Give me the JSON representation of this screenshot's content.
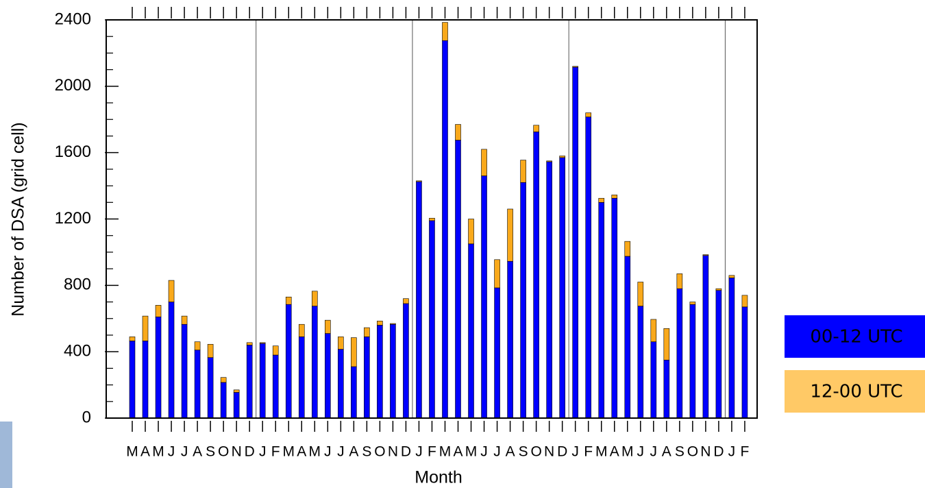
{
  "chart_data": {
    "type": "bar",
    "stacked": true,
    "x_label": "Month",
    "y_label": "Number of DSA (grid cell)",
    "categories": [
      "M",
      "A",
      "M",
      "J",
      "J",
      "A",
      "S",
      "O",
      "N",
      "D",
      "J",
      "F",
      "M",
      "A",
      "M",
      "J",
      "J",
      "A",
      "S",
      "O",
      "N",
      "D",
      "J",
      "F",
      "M",
      "A",
      "M",
      "J",
      "J",
      "A",
      "S",
      "O",
      "N",
      "D",
      "J",
      "F",
      "M",
      "A",
      "M",
      "J",
      "J",
      "A",
      "S",
      "O",
      "N",
      "D",
      "J",
      "F"
    ],
    "series": [
      {
        "name": "00-12 UTC",
        "color": "#0000ff",
        "values": [
          465,
          465,
          610,
          700,
          565,
          410,
          365,
          215,
          155,
          440,
          450,
          380,
          685,
          490,
          675,
          510,
          415,
          310,
          490,
          560,
          565,
          690,
          1425,
          1190,
          2275,
          1675,
          1050,
          1460,
          785,
          945,
          1420,
          1725,
          1545,
          1570,
          2115,
          1815,
          1300,
          1325,
          975,
          675,
          460,
          350,
          780,
          685,
          980,
          770,
          845,
          670
        ]
      },
      {
        "name": "12-00 UTC",
        "color": "#f9a91b",
        "values": [
          25,
          150,
          70,
          130,
          50,
          50,
          80,
          30,
          15,
          15,
          5,
          55,
          45,
          75,
          90,
          80,
          75,
          175,
          55,
          25,
          5,
          30,
          5,
          15,
          110,
          95,
          150,
          160,
          170,
          315,
          135,
          40,
          5,
          10,
          5,
          25,
          25,
          20,
          90,
          145,
          135,
          190,
          90,
          15,
          5,
          10,
          15,
          70
        ]
      }
    ],
    "ylim": [
      0,
      2400
    ],
    "yticks": [
      0,
      400,
      800,
      1200,
      1600,
      2000,
      2400
    ]
  }
}
